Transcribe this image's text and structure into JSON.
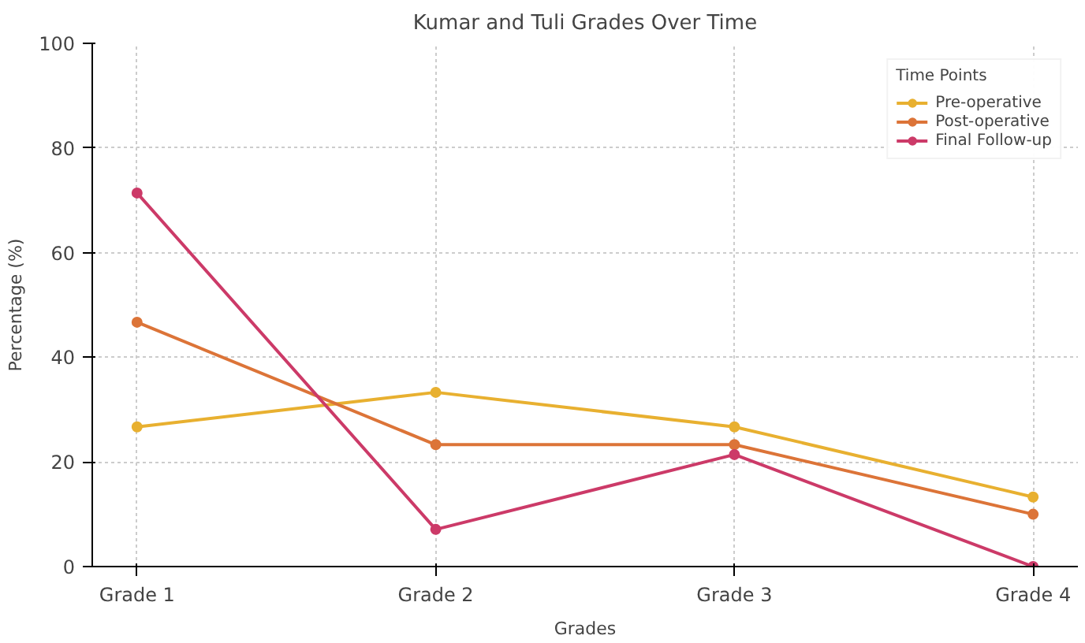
{
  "chart_data": {
    "type": "line",
    "title": "Kumar and Tuli Grades Over Time",
    "xlabel": "Grades",
    "ylabel": "Percentage (%)",
    "legend_title": "Time Points",
    "categories": [
      "Grade 1",
      "Grade 2",
      "Grade 3",
      "Grade 4"
    ],
    "series": [
      {
        "name": "Pre-operative",
        "color": "#e8b030",
        "values": [
          26.7,
          33.3,
          26.7,
          13.3
        ]
      },
      {
        "name": "Post-operative",
        "color": "#dc7438",
        "values": [
          46.7,
          23.3,
          23.3,
          10.0
        ]
      },
      {
        "name": "Final Follow-up",
        "color": "#cc3a68",
        "values": [
          71.4,
          7.1,
          21.4,
          0.0
        ]
      }
    ],
    "ylim": [
      0,
      100
    ],
    "yticks": [
      0,
      20,
      40,
      60,
      80,
      100
    ],
    "grid": true,
    "legend": "top right",
    "marker": "circle",
    "line_style": "solid"
  }
}
